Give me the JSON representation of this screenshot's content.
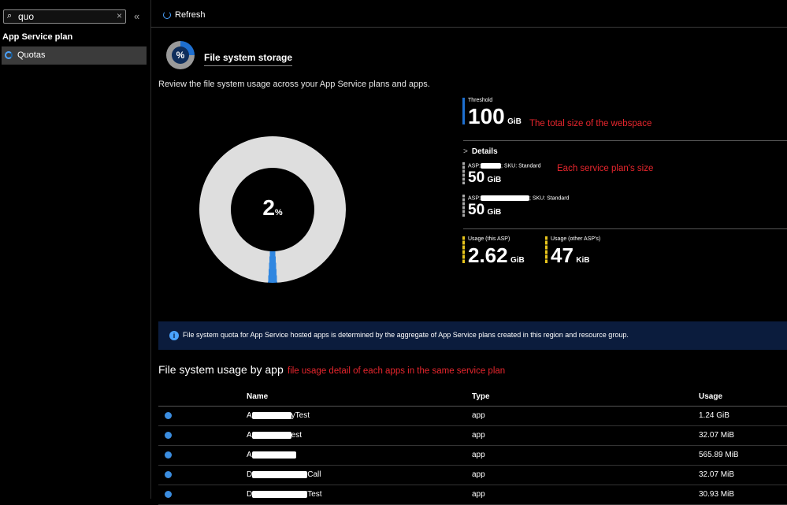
{
  "sidebar": {
    "search_value": "quo",
    "collapse_glyph": "«",
    "group_title": "App Service plan",
    "items": [
      {
        "label": "Quotas",
        "icon": "quota-icon"
      }
    ]
  },
  "toolbar": {
    "refresh_label": "Refresh"
  },
  "header": {
    "title": "File system storage",
    "icon_text": "%"
  },
  "description": "Review the file system usage across your App Service plans and apps.",
  "donut": {
    "value": "2",
    "unit": "%",
    "percent": 2,
    "colors": {
      "used": "#2f86e0",
      "free": "#dedede"
    }
  },
  "threshold": {
    "caption": "Threshold",
    "value": "100",
    "unit": "GiB",
    "color": "#1e6fd0"
  },
  "details": {
    "label": "Details",
    "plans": [
      {
        "asp_prefix": "ASP:",
        "sku": "; SKU: Standard",
        "value": "50",
        "unit": "GiB"
      },
      {
        "asp_prefix": "ASP:",
        "sku": "; SKU: Standard",
        "value": "50",
        "unit": "GiB"
      }
    ]
  },
  "usage": {
    "this": {
      "caption": "Usage (this ASP)",
      "value": "2.62",
      "unit": "GiB"
    },
    "other": {
      "caption": "Usage (other ASP's)",
      "value": "47",
      "unit": "KiB"
    },
    "color": "#e8c51c"
  },
  "annotations": {
    "threshold_note": "The total size of the webspace",
    "plan_note": "Each service plan's size",
    "apps_note": "file usage detail of each apps in the same service plan"
  },
  "info_banner": "File system quota for App Service hosted apps is determined by the aggregate of App Service plans created in this region and resource group.",
  "apps_section": {
    "title": "File system usage by app",
    "columns": [
      "Name",
      "Type",
      "Usage"
    ],
    "rows": [
      {
        "name_start": "A",
        "name_end": "yTest",
        "type": "app",
        "usage": "1.24 GiB"
      },
      {
        "name_start": "A",
        "name_end": "est",
        "type": "app",
        "usage": "32.07 MiB"
      },
      {
        "name_start": "A",
        "name_end": "",
        "type": "app",
        "usage": "565.89 MiB"
      },
      {
        "name_start": "D",
        "name_end": "Call",
        "type": "app",
        "usage": "32.07 MiB"
      },
      {
        "name_start": "D",
        "name_end": "Test",
        "type": "app",
        "usage": "30.93 MiB"
      }
    ]
  }
}
